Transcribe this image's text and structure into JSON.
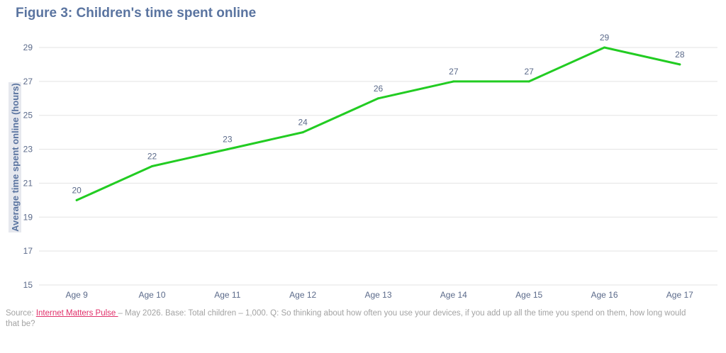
{
  "chart_data": {
    "type": "line",
    "title": "Figure 3: Children's time spent online",
    "xlabel": "",
    "ylabel": "Average time spent online (hours)",
    "categories": [
      "Age 9",
      "Age 10",
      "Age 11",
      "Age 12",
      "Age 13",
      "Age 14",
      "Age 15",
      "Age 16",
      "Age 17"
    ],
    "series": [
      {
        "values": [
          20,
          22,
          23,
          24,
          26,
          27,
          27,
          29,
          28
        ],
        "color": "#22cc22"
      }
    ],
    "ylim": [
      15,
      29
    ],
    "yticks": [
      15,
      17,
      19,
      21,
      23,
      25,
      27,
      29
    ],
    "grid": true,
    "data_labels": true
  },
  "source": {
    "prefix": "Source: ",
    "link_text": "Internet Matters Pulse ",
    "suffix": "– May 2026. Base: Total children – 1,000. Q: So thinking about how often you use your devices, if you add up all the time you spend on them, how long would that be?",
    "link_color": "#e0306a"
  }
}
